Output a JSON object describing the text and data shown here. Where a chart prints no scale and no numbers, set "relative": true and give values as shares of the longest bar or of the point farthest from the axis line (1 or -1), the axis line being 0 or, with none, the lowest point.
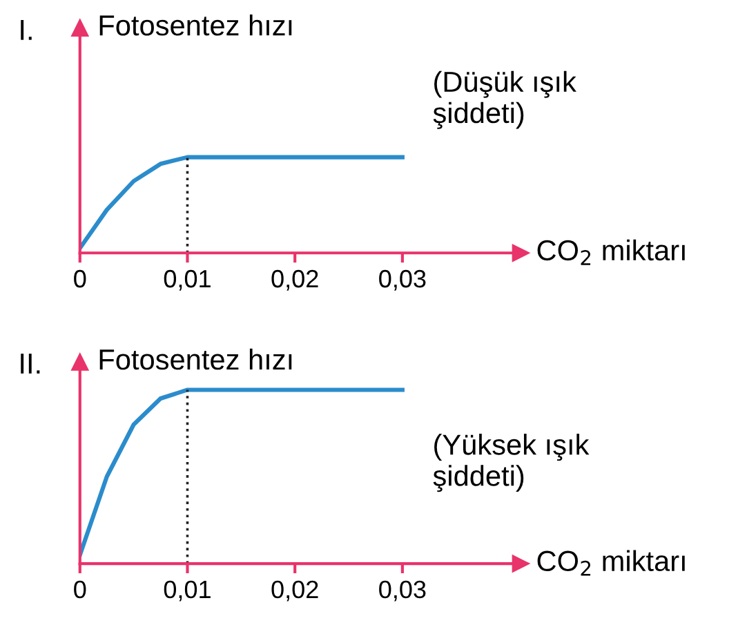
{
  "chart_data": [
    {
      "type": "line",
      "relative": true,
      "ylabel": "Fotosentez hızı",
      "xlabel": "CO$_{2}$ miktarı",
      "annotations": [
        "I.",
        "(Düşük ışık\nşiddeti)"
      ],
      "x": [
        0,
        0.0025,
        0.005,
        0.0075,
        0.01,
        0.03
      ],
      "series": [
        {
          "color": "#2b8ccc",
          "values": [
            0.05,
            0.45,
            0.75,
            0.93,
            1,
            1
          ]
        }
      ],
      "xlim": [
        0,
        0.041
      ],
      "xticks": [
        0,
        {
          "value": 0.01,
          "label": "0,01"
        },
        {
          "value": 0.02,
          "label": "0,02"
        },
        {
          "value": 0.03,
          "label": "0,03"
        }
      ],
      "ref_lines": [
        {
          "axis": "x",
          "value": 0.01,
          "line_style": "dotted",
          "color": "#222222"
        }
      ],
      "grid": false,
      "legend": false,
      "marker": "none",
      "line_style": "solid",
      "tick_labels": "x"
    },
    {
      "type": "line",
      "relative": true,
      "ylabel": "Fotosentez hızı",
      "xlabel": "CO$_{2}$ miktarı",
      "annotations": [
        "II.",
        "(Yüksek ışık\nşiddeti)"
      ],
      "x": [
        0,
        0.0025,
        0.005,
        0.0075,
        0.01,
        0.03
      ],
      "series": [
        {
          "color": "#2b8ccc",
          "values": [
            0.05,
            0.5,
            0.8,
            0.95,
            1,
            1
          ]
        }
      ],
      "xlim": [
        0,
        0.041
      ],
      "xticks": [
        0,
        {
          "value": 0.01,
          "label": "0,01"
        },
        {
          "value": 0.02,
          "label": "0,02"
        },
        {
          "value": 0.03,
          "label": "0,03"
        }
      ],
      "ref_lines": [
        {
          "axis": "x",
          "value": 0.01,
          "line_style": "dotted",
          "color": "#222222"
        }
      ],
      "grid": false,
      "legend": false,
      "marker": "none",
      "line_style": "solid",
      "tick_labels": "x"
    }
  ]
}
